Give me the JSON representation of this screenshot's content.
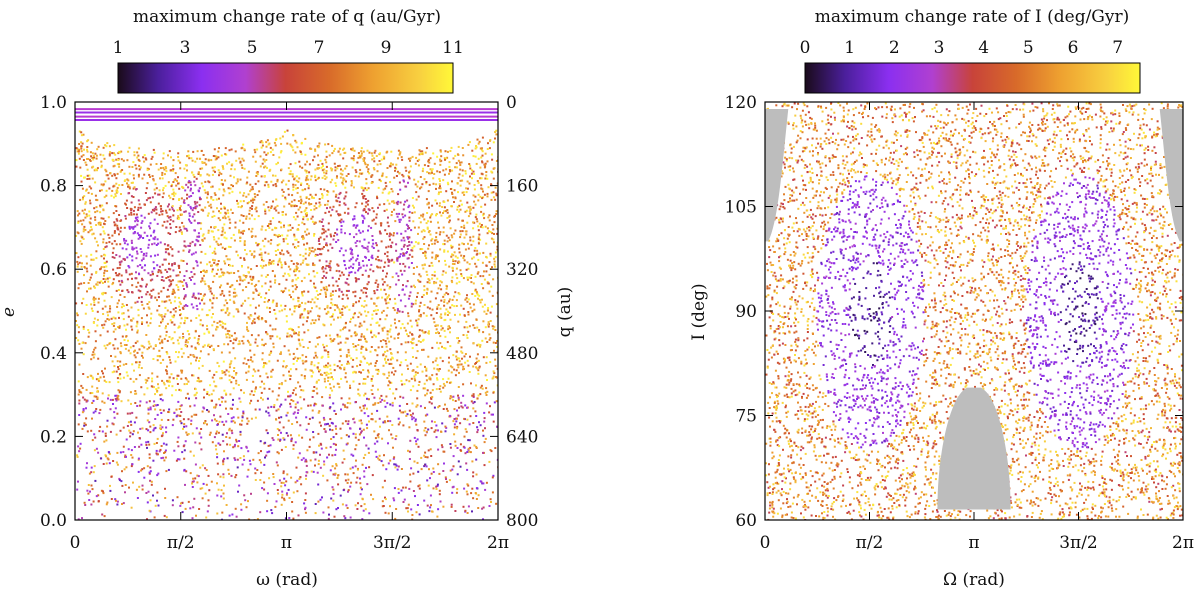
{
  "chart_data": [
    {
      "type": "scatter",
      "title": "",
      "colorbar": {
        "title": "maximum change rate of q (au/Gyr)",
        "ticks": [
          "1",
          "3",
          "5",
          "7",
          "9",
          "11"
        ],
        "range": [
          1,
          11
        ],
        "placement": "top"
      },
      "xlabel": "ω (rad)",
      "ylabel": "e",
      "y2label": "q (au)",
      "xlim": [
        0,
        6.2832
      ],
      "ylim": [
        0,
        1
      ],
      "xticks": [
        "0",
        "π/2",
        "π",
        "3π/2",
        "2π"
      ],
      "yticks": [
        "0.0",
        "0.2",
        "0.4",
        "0.6",
        "0.8",
        "1.0"
      ],
      "y2ticks": [
        "800",
        "640",
        "480",
        "320",
        "160",
        "0"
      ],
      "grid": false,
      "colormap": [
        "#1a0b1a",
        "#4b1f9c",
        "#8b2ff0",
        "#b040d0",
        "#c8433a",
        "#d86a2a",
        "#eea030",
        "#f8d040",
        "#fff838"
      ]
    },
    {
      "type": "scatter",
      "title": "",
      "colorbar": {
        "title": "maximum change rate of I (deg/Gyr)",
        "ticks": [
          "0",
          "1",
          "2",
          "3",
          "4",
          "5",
          "6",
          "7"
        ],
        "range": [
          0,
          7.5
        ],
        "placement": "top"
      },
      "xlabel": "Ω (rad)",
      "ylabel": "I (deg)",
      "xlim": [
        0,
        6.2832
      ],
      "ylim": [
        60,
        120
      ],
      "xticks": [
        "0",
        "π/2",
        "π",
        "3π/2",
        "2π"
      ],
      "yticks": [
        "60",
        "75",
        "90",
        "105",
        "120"
      ],
      "grid": false,
      "forbidden_region_color": "#bdbdbd",
      "colormap": [
        "#1a0b1a",
        "#4b1f9c",
        "#8b2ff0",
        "#b040d0",
        "#c8433a",
        "#d86a2a",
        "#eea030",
        "#f8d040",
        "#fff838"
      ]
    }
  ]
}
